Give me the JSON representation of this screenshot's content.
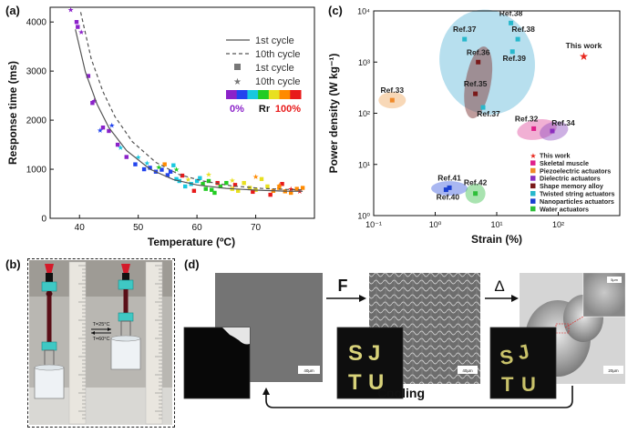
{
  "panels": {
    "a": "(a)",
    "b": "(b)",
    "c": "(c)",
    "d": "(d)"
  },
  "chart_data": [
    {
      "panel": "(a)",
      "type": "scatter",
      "xlabel": "Temperature (ºC)",
      "ylabel": "Response time (ms)",
      "xlim": [
        35,
        80
      ],
      "ylim": [
        0,
        4300
      ],
      "xticks": [
        40,
        50,
        60,
        70
      ],
      "yticks": [
        0,
        1000,
        2000,
        3000,
        4000
      ],
      "legend_position": "top-right",
      "legend": {
        "line1": "1st cycle",
        "line10": "10th cycle",
        "pt1": "1st cycle",
        "pt10": "10th cycle",
        "scale_min": "0%",
        "scale_mid": "Rr",
        "scale_max": "100%"
      },
      "fit_1st": [
        [
          39.3,
          3850
        ],
        [
          41,
          2980
        ],
        [
          43,
          2320
        ],
        [
          45,
          1850
        ],
        [
          48,
          1380
        ],
        [
          52,
          1000
        ],
        [
          56,
          790
        ],
        [
          60,
          680
        ],
        [
          65,
          610
        ],
        [
          70,
          575
        ],
        [
          75,
          555
        ],
        [
          78,
          550
        ]
      ],
      "fit_10th": [
        [
          40.2,
          4200
        ],
        [
          42,
          3250
        ],
        [
          44,
          2580
        ],
        [
          46,
          2080
        ],
        [
          49,
          1560
        ],
        [
          53,
          1140
        ],
        [
          57,
          890
        ],
        [
          61,
          760
        ],
        [
          66,
          660
        ],
        [
          71,
          610
        ],
        [
          75,
          590
        ],
        [
          78,
          580
        ]
      ],
      "points_1st": [
        [
          39.5,
          4000
        ],
        [
          39.7,
          3900
        ],
        [
          41.5,
          2900
        ],
        [
          42.2,
          2350
        ],
        [
          44,
          1850
        ],
        [
          45,
          1780
        ],
        [
          46.5,
          1500
        ],
        [
          48,
          1250
        ],
        [
          49.5,
          1100
        ],
        [
          51,
          1000
        ],
        [
          52,
          1030
        ],
        [
          53,
          950
        ],
        [
          54,
          990
        ],
        [
          55,
          880
        ],
        [
          55.5,
          950
        ],
        [
          56,
          1080
        ],
        [
          56.5,
          800
        ],
        [
          57,
          760
        ],
        [
          58,
          650
        ],
        [
          59,
          700
        ],
        [
          60,
          760
        ],
        [
          60.5,
          820
        ],
        [
          61,
          700
        ],
        [
          61.5,
          600
        ],
        [
          62,
          760
        ],
        [
          62.5,
          580
        ],
        [
          63,
          520
        ],
        [
          64,
          650
        ],
        [
          65,
          720
        ],
        [
          66,
          600
        ],
        [
          67,
          560
        ],
        [
          68,
          720
        ],
        [
          69,
          620
        ],
        [
          70,
          580
        ],
        [
          71,
          800
        ],
        [
          72,
          650
        ],
        [
          73,
          560
        ],
        [
          74,
          620
        ],
        [
          75,
          550
        ],
        [
          76,
          520
        ],
        [
          77,
          600
        ],
        [
          78,
          620
        ],
        [
          54.5,
          1100
        ],
        [
          57.5,
          870
        ],
        [
          59.5,
          560
        ],
        [
          63.5,
          720
        ],
        [
          66.5,
          680
        ],
        [
          69.5,
          540
        ],
        [
          72.5,
          480
        ],
        [
          74.5,
          700
        ]
      ],
      "points_10th": [
        [
          38.5,
          4250
        ],
        [
          40.3,
          3800
        ],
        [
          42.5,
          2400
        ],
        [
          43.5,
          1800
        ],
        [
          45.5,
          1900
        ],
        [
          47,
          1450
        ],
        [
          50,
          1250
        ],
        [
          51.5,
          1130
        ],
        [
          53.5,
          1050
        ],
        [
          56.5,
          1000
        ],
        [
          58.5,
          800
        ],
        [
          62,
          900
        ],
        [
          66,
          780
        ],
        [
          70,
          850
        ],
        [
          74,
          680
        ],
        [
          76,
          600
        ],
        [
          77.5,
          560
        ]
      ],
      "colorscale": [
        "#8b22c9",
        "#2244ee",
        "#18c8e0",
        "#22cc22",
        "#e8e020",
        "#ff8a00",
        "#e81a1a"
      ]
    },
    {
      "panel": "(c)",
      "type": "scatter",
      "xlabel": "Strain (%)",
      "ylabel": "Power density (W kg⁻¹)",
      "xscale": "log",
      "yscale": "log",
      "xlim": [
        0.1,
        1000
      ],
      "ylim": [
        1,
        10000
      ],
      "xticks": [
        "10⁻¹",
        "10⁰",
        "10¹",
        "10²"
      ],
      "yticks": [
        "10⁰",
        "10¹",
        "10²",
        "10³",
        "10⁴"
      ],
      "legend_position": "bottom-right",
      "points": [
        {
          "label": "Ref.33",
          "x": 0.2,
          "y": 180,
          "category": "Piezoelectric actuators"
        },
        {
          "label": "Ref.37",
          "x": 3,
          "y": 2800,
          "category": "Twisted string actuators"
        },
        {
          "label": "Ref.38",
          "x": 17,
          "y": 5800,
          "category": "Twisted string actuators"
        },
        {
          "label": "Ref.38",
          "x": 22,
          "y": 2800,
          "category": "Twisted string actuators"
        },
        {
          "label": "Ref.39",
          "x": 18,
          "y": 1600,
          "category": "Twisted string actuators"
        },
        {
          "label": "Ref.36",
          "x": 5,
          "y": 1000,
          "category": "Shape memory alloy"
        },
        {
          "label": "Ref.35",
          "x": 4.5,
          "y": 240,
          "category": "Shape memory alloy"
        },
        {
          "label": "Ref.37",
          "x": 6,
          "y": 130,
          "category": "Twisted string actuators"
        },
        {
          "label": "Ref.32",
          "x": 40,
          "y": 50,
          "category": "Skeletal muscle"
        },
        {
          "label": "Ref.34",
          "x": 80,
          "y": 45,
          "category": "Dielectric actuators"
        },
        {
          "label": "This work",
          "x": 260,
          "y": 1300,
          "category": "This work"
        },
        {
          "label": "Ref.41",
          "x": 1.7,
          "y": 3.5,
          "category": "Nanoparticles actuators"
        },
        {
          "label": "Ref.40",
          "x": 1.5,
          "y": 3.2,
          "category": "Nanoparticles actuators"
        },
        {
          "label": "Ref.42",
          "x": 4.5,
          "y": 2.7,
          "category": "Water actuators"
        }
      ],
      "legend": [
        {
          "name": "This work",
          "color": "#e8281e",
          "marker": "star"
        },
        {
          "name": "Skeletal muscle",
          "color": "#e0208a",
          "marker": "square"
        },
        {
          "name": "Piezoelectric actuators",
          "color": "#f08a2a",
          "marker": "square"
        },
        {
          "name": "Dielectric actuators",
          "color": "#8a2fbf",
          "marker": "square"
        },
        {
          "name": "Shape memory alloy",
          "color": "#7a1a1a",
          "marker": "square"
        },
        {
          "name": "Twisted string actuators",
          "color": "#28b8cc",
          "marker": "square"
        },
        {
          "name": "Nanoparticles actuators",
          "color": "#1a3fd0",
          "marker": "square"
        },
        {
          "name": "Water actuators",
          "color": "#2fbf3a",
          "marker": "square"
        }
      ]
    }
  ],
  "photo_b": {
    "cold": "T=25°C",
    "hot": "T=60°C"
  },
  "panel_d": {
    "force": "F",
    "heat": "Δ",
    "cooling": "Cooling",
    "scalebar1": "40μm",
    "scalebar2": "40μm",
    "scalebar3": "20μm",
    "scalebar_inset": "5μm",
    "letters_mid": [
      "S",
      "J",
      "T",
      "U"
    ],
    "letters_right": [
      "S",
      "J",
      "T",
      "U"
    ]
  }
}
